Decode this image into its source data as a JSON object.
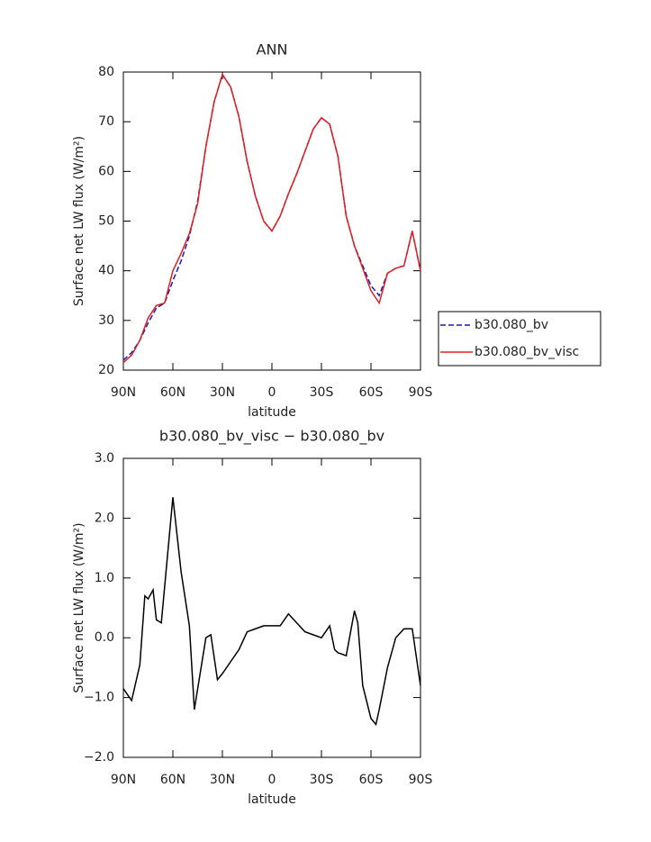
{
  "chart_data": [
    {
      "type": "line",
      "title": "ANN",
      "xlabel": "latitude",
      "ylabel": "Surface net LW flux (W/m²)",
      "x": [
        90,
        85,
        80,
        75,
        70,
        65,
        60,
        55,
        50,
        45,
        40,
        35,
        30,
        25,
        20,
        15,
        10,
        5,
        0,
        -5,
        -10,
        -15,
        -20,
        -25,
        -30,
        -35,
        -40,
        -45,
        -50,
        -55,
        -60,
        -65,
        -70,
        -75,
        -80,
        -85,
        -90
      ],
      "series": [
        {
          "name": "b30.080_bv",
          "color": "#1a1ab4",
          "line_style": "dashed",
          "values": [
            22,
            23.5,
            26,
            29.5,
            32.5,
            33.5,
            38,
            42,
            47,
            54,
            65,
            74,
            79.5,
            77,
            71,
            62,
            55,
            50,
            48,
            51,
            55.5,
            59.5,
            64,
            68.5,
            70.8,
            69.5,
            63,
            51,
            45,
            41,
            37,
            35,
            39.5,
            40.5,
            41,
            48,
            40
          ]
        },
        {
          "name": "b30.080_bv_visc",
          "color": "#e02020",
          "line_style": "solid",
          "values": [
            21.5,
            23,
            26,
            30.5,
            33,
            33.5,
            40,
            43.5,
            47.5,
            53.5,
            65,
            74,
            79.5,
            77,
            71,
            62,
            55,
            50,
            48,
            51,
            55.5,
            59.5,
            64,
            68.5,
            70.8,
            69.5,
            63,
            51,
            45,
            40.5,
            36,
            33.5,
            39.5,
            40.5,
            41,
            48,
            40
          ]
        }
      ],
      "xlim": [
        90,
        -90
      ],
      "xticks": [
        {
          "value": 90,
          "label": "90N"
        },
        {
          "value": 60,
          "label": "60N"
        },
        {
          "value": 30,
          "label": "30N"
        },
        0,
        {
          "value": -30,
          "label": "30S"
        },
        {
          "value": -60,
          "label": "60S"
        },
        {
          "value": -90,
          "label": "90S"
        }
      ],
      "ylim": [
        20,
        80
      ],
      "yticks": [
        20,
        30,
        40,
        50,
        60,
        70,
        80
      ],
      "legend": "right"
    },
    {
      "type": "line",
      "title": "b30.080_bv_visc − b30.080_bv",
      "xlabel": "latitude",
      "ylabel": "Surface net LW flux (W/m²)",
      "x": [
        90,
        85,
        80,
        77,
        75,
        72,
        70,
        67,
        60,
        55,
        50,
        47,
        40,
        37,
        33,
        30,
        25,
        20,
        15,
        10,
        5,
        0,
        -5,
        -10,
        -15,
        -20,
        -25,
        -30,
        -35,
        -38,
        -40,
        -45,
        -50,
        -52,
        -55,
        -60,
        -63,
        -65,
        -70,
        -75,
        -80,
        -85,
        -90
      ],
      "series": [
        {
          "name": null,
          "color": "#000000",
          "line_style": "solid",
          "values": [
            -0.85,
            -1.05,
            -0.45,
            0.7,
            0.65,
            0.8,
            0.3,
            0.25,
            2.35,
            1.1,
            0.2,
            -1.2,
            0.0,
            0.05,
            -0.7,
            -0.6,
            -0.4,
            -0.2,
            0.1,
            0.15,
            0.2,
            0.2,
            0.2,
            0.4,
            0.25,
            0.1,
            0.05,
            0.0,
            0.2,
            -0.2,
            -0.25,
            -0.3,
            0.45,
            0.25,
            -0.8,
            -1.35,
            -1.45,
            -1.2,
            -0.5,
            0.0,
            0.15,
            0.15,
            -0.8
          ]
        }
      ],
      "xlim": [
        90,
        -90
      ],
      "xticks": [
        {
          "value": 90,
          "label": "90N"
        },
        {
          "value": 60,
          "label": "60N"
        },
        {
          "value": 30,
          "label": "30N"
        },
        0,
        {
          "value": -30,
          "label": "30S"
        },
        {
          "value": -60,
          "label": "60S"
        },
        {
          "value": -90,
          "label": "90S"
        }
      ],
      "ylim": [
        -2,
        3
      ],
      "yticks": [
        {
          "value": -2,
          "label": "−2.0"
        },
        {
          "value": -1,
          "label": "−1.0"
        },
        {
          "value": 0,
          "label": "0.0"
        },
        {
          "value": 1,
          "label": "1.0"
        },
        {
          "value": 2,
          "label": "2.0"
        },
        {
          "value": 3,
          "label": "3.0"
        }
      ]
    }
  ]
}
